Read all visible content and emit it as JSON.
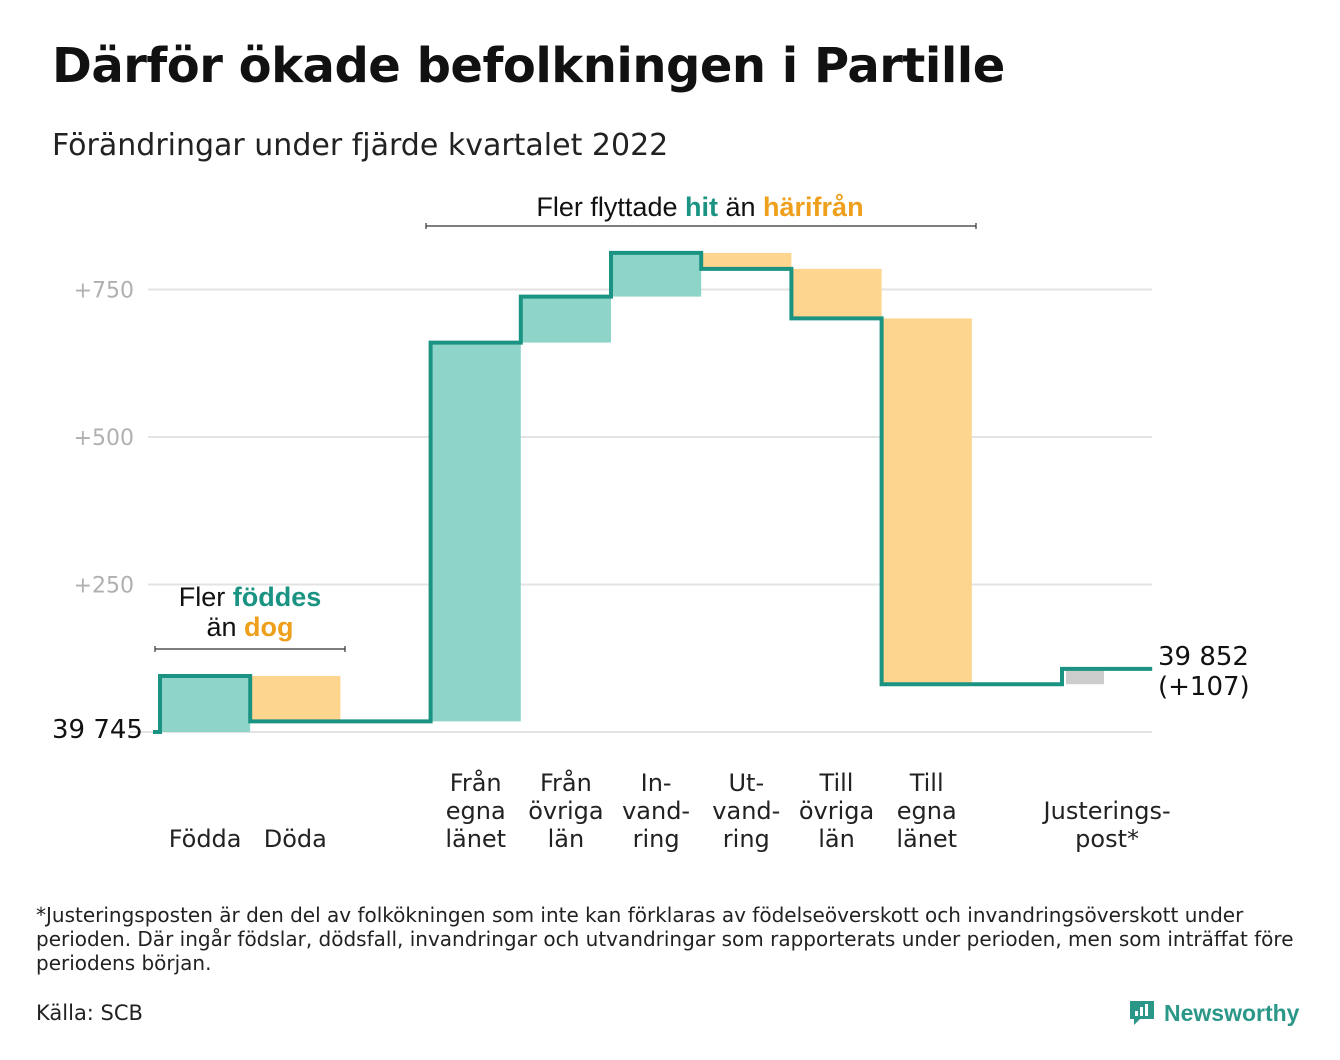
{
  "title": "Därför ökade befolkningen i Partille",
  "subtitle": "Förändringar under fjärde kvartalet 2022",
  "colors": {
    "increase": "#8fd4c8",
    "decrease": "#fdd58e",
    "adjustment": "#cccccc",
    "line": "#1a9382",
    "accent_teal": "#1a9382",
    "accent_orange": "#eea01c",
    "grid": "#e3e3e3"
  },
  "chart_data": {
    "type": "waterfall",
    "start": {
      "value": 39745,
      "label": "39 745"
    },
    "end": {
      "value": 39852,
      "label": "39 852",
      "change_label": "(+107)"
    },
    "y_ticks": [
      {
        "value": 250,
        "label": "+250"
      },
      {
        "value": 500,
        "label": "+500"
      },
      {
        "value": 750,
        "label": "+750"
      }
    ],
    "ylim": [
      0,
      800
    ],
    "grid": true,
    "steps": [
      {
        "label_lines": [
          "Födda"
        ],
        "value": 95,
        "kind": "increase"
      },
      {
        "label_lines": [
          "Döda"
        ],
        "value": -77,
        "kind": "decrease"
      },
      {
        "label_lines": [],
        "value": 0,
        "kind": "spacer"
      },
      {
        "label_lines": [
          "Från",
          "egna",
          "länet"
        ],
        "value": 642,
        "kind": "increase"
      },
      {
        "label_lines": [
          "Från",
          "övriga",
          "län"
        ],
        "value": 78,
        "kind": "increase"
      },
      {
        "label_lines": [
          "In-",
          "vand-",
          "ring"
        ],
        "value": 74,
        "kind": "increase"
      },
      {
        "label_lines": [
          "Ut-",
          "vand-",
          "ring"
        ],
        "value": -27,
        "kind": "decrease"
      },
      {
        "label_lines": [
          "Till",
          "övriga",
          "län"
        ],
        "value": -84,
        "kind": "decrease"
      },
      {
        "label_lines": [
          "Till",
          "egna",
          "länet"
        ],
        "value": -620,
        "kind": "decrease"
      },
      {
        "label_lines": [],
        "value": 0,
        "kind": "spacer"
      },
      {
        "label_lines": [
          "Justerings-",
          "post*"
        ],
        "value": 26,
        "kind": "adjustment"
      }
    ],
    "annotations": [
      {
        "parts": [
          {
            "text": "Fler ",
            "style": "plain"
          },
          {
            "text": "föddes",
            "style": "teal"
          }
        ],
        "parts2": [
          {
            "text": "än ",
            "style": "plain"
          },
          {
            "text": "dog",
            "style": "orange"
          }
        ]
      },
      {
        "parts": [
          {
            "text": "Fler flyttade ",
            "style": "plain"
          },
          {
            "text": "hit",
            "style": "teal"
          },
          {
            "text": " än ",
            "style": "plain"
          },
          {
            "text": "härifrån",
            "style": "orange"
          }
        ]
      }
    ]
  },
  "footnote": "*Justeringsposten är den del av folkökningen som inte kan förklaras av födelseöverskott och invandringsöverskott under perioden. Där ingår födslar, dödsfall, invandringar och utvandringar som rapporterats under perioden, men som inträffat före periodens början.",
  "source": "Källa: SCB",
  "brand": {
    "name": "Newsworthy",
    "icon": "newsworthy-logo-icon"
  }
}
